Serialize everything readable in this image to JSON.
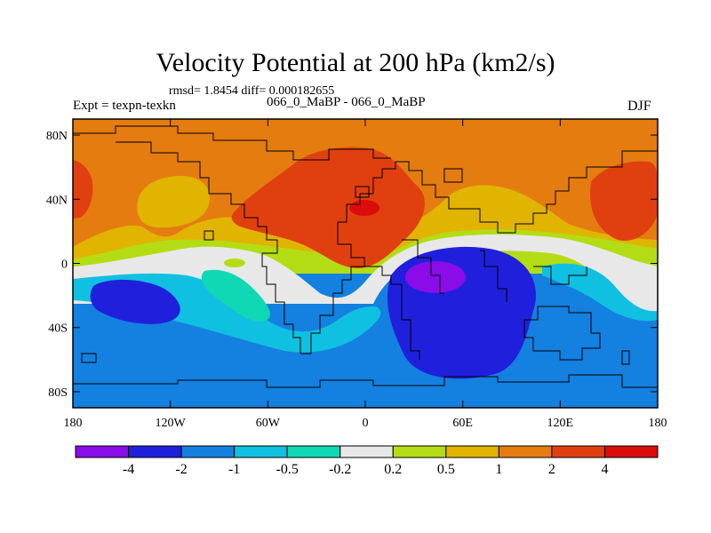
{
  "chart_data": {
    "type": "heatmap",
    "title": "Velocity Potential at 200 hPa (km2/s)",
    "stats": "rmsd= 1.8454 diff= 0.000182655",
    "left_label": "Expt = texpn-texkn",
    "center_label": "066_0_MaBP - 066_0_MaBP",
    "right_label": "DJF",
    "x_axis": {
      "range": [
        -180,
        180
      ],
      "ticks": [
        -180,
        -120,
        -60,
        0,
        60,
        120,
        180
      ],
      "tick_labels": [
        "180",
        "120W",
        "60W",
        "0",
        "60E",
        "120E",
        "180"
      ]
    },
    "y_axis": {
      "range": [
        -90,
        90
      ],
      "ticks": [
        80,
        40,
        0,
        -40,
        -80
      ],
      "tick_labels": [
        "80N",
        "40N",
        "0",
        "40S",
        "80S"
      ]
    },
    "colorbar": {
      "labels": [
        "-4",
        "-2",
        "-1",
        "-0.5",
        "-0.2",
        "0.2",
        "0.5",
        "1",
        "2",
        "4"
      ],
      "colors": [
        "#8a0ce8",
        "#2020dc",
        "#1480e0",
        "#10c0e0",
        "#10d8b4",
        "#e8e8e8",
        "#b4dc14",
        "#e0b400",
        "#e47c10",
        "#e04010",
        "#dc0c0c"
      ]
    },
    "contour_regions": [
      {
        "level": "2",
        "color": "#e47c10",
        "label": "northern hemisphere background (1 to 2)"
      },
      {
        "level": "4",
        "color": "#e04010",
        "label": "Eurasia/Africa maximum (2 to 4)"
      },
      {
        "level": ">4",
        "color": "#dc0c0c",
        "label": "peak near 30N, 0E"
      },
      {
        "level": "1",
        "color": "#e0b400",
        "label": "subtropical band (0.5 to 1)"
      },
      {
        "level": "-1",
        "color": "#1480e0",
        "label": "southern hemisphere background (-2 to -1)"
      },
      {
        "level": "-2",
        "color": "#2020dc",
        "label": "Indian Ocean minimum and SE Pacific minimum (-4 to -2)"
      },
      {
        "level": "<-4",
        "color": "#8a0ce8",
        "label": "peak near 10S, 50E"
      }
    ]
  }
}
